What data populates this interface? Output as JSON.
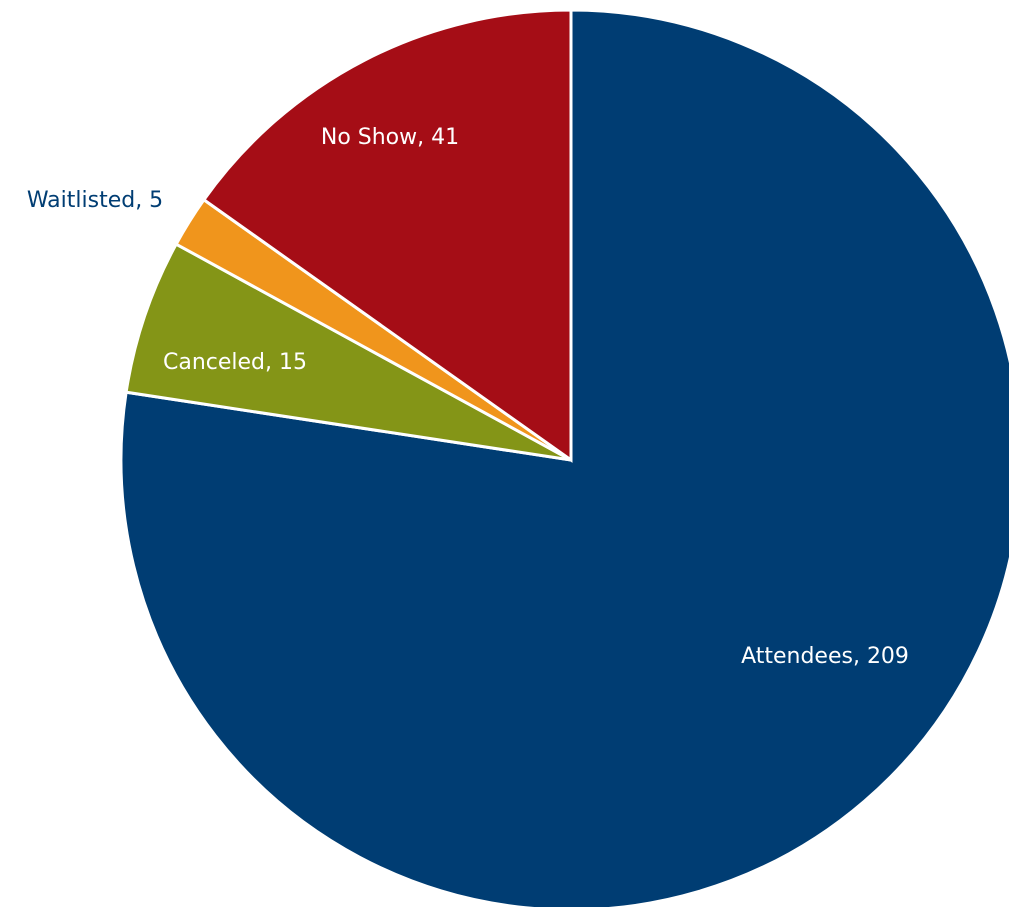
{
  "chart_data": {
    "type": "pie",
    "title": "",
    "start_angle_deg": 90,
    "direction": "clockwise",
    "slices": [
      {
        "label": "Attendees",
        "value": 209,
        "color": "#003d73",
        "label_color": "#ffffff",
        "label_text": "Attendees, 209"
      },
      {
        "label": "Canceled",
        "value": 15,
        "color": "#849517",
        "label_color": "#ffffff",
        "label_text": "Canceled, 15"
      },
      {
        "label": "Waitlisted",
        "value": 5,
        "color": "#f0951c",
        "label_color": "#003d73",
        "label_text": "Waitlisted, 5"
      },
      {
        "label": "No Show",
        "value": 41,
        "color": "#a50d16",
        "label_color": "#ffffff",
        "label_text": "No Show, 41"
      }
    ]
  }
}
